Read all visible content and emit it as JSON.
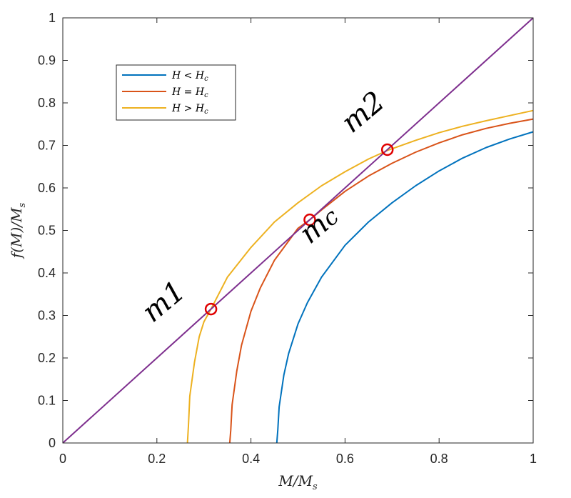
{
  "chart_data": {
    "type": "line",
    "xlabel": "M/M_s",
    "ylabel": "f(M)/M_s",
    "xlim": [
      0,
      1
    ],
    "ylim": [
      0,
      1
    ],
    "xticks": [
      0,
      0.2,
      0.4,
      0.6,
      0.8,
      1
    ],
    "xtick_labels": [
      "0",
      "0.2",
      "0.4",
      "0.6",
      "0.8",
      "1"
    ],
    "yticks": [
      0,
      0.1,
      0.2,
      0.3,
      0.4,
      0.5,
      0.6,
      0.7,
      0.8,
      0.9,
      1
    ],
    "ytick_labels": [
      "0",
      "0.1",
      "0.2",
      "0.3",
      "0.4",
      "0.5",
      "0.6",
      "0.7",
      "0.8",
      "0.9",
      "1"
    ],
    "grid": false,
    "legend_position": "top-left",
    "series": [
      {
        "name": "H < H_c",
        "color": "#0072BD",
        "x": [
          0.455,
          0.457,
          0.46,
          0.47,
          0.48,
          0.5,
          0.52,
          0.55,
          0.6,
          0.65,
          0.7,
          0.75,
          0.8,
          0.85,
          0.9,
          0.95,
          1.0
        ],
        "y": [
          0.0,
          0.03,
          0.085,
          0.16,
          0.21,
          0.28,
          0.33,
          0.39,
          0.465,
          0.52,
          0.565,
          0.605,
          0.64,
          0.67,
          0.695,
          0.715,
          0.732
        ]
      },
      {
        "name": "H = H_c",
        "color": "#D95319",
        "x": [
          0.355,
          0.357,
          0.36,
          0.37,
          0.38,
          0.4,
          0.42,
          0.45,
          0.5,
          0.525,
          0.55,
          0.6,
          0.65,
          0.7,
          0.75,
          0.8,
          0.85,
          0.9,
          0.95,
          1.0
        ],
        "y": [
          0.0,
          0.03,
          0.09,
          0.17,
          0.23,
          0.31,
          0.365,
          0.43,
          0.505,
          0.525,
          0.548,
          0.592,
          0.628,
          0.658,
          0.684,
          0.706,
          0.725,
          0.74,
          0.752,
          0.762
        ]
      },
      {
        "name": "H > H_c",
        "color": "#EDB120",
        "x": [
          0.265,
          0.267,
          0.27,
          0.28,
          0.29,
          0.3,
          0.315,
          0.35,
          0.4,
          0.45,
          0.5,
          0.55,
          0.6,
          0.65,
          0.69,
          0.75,
          0.8,
          0.85,
          0.9,
          0.95,
          1.0
        ],
        "y": [
          0.0,
          0.04,
          0.11,
          0.19,
          0.25,
          0.285,
          0.315,
          0.39,
          0.46,
          0.52,
          0.565,
          0.605,
          0.638,
          0.668,
          0.688,
          0.712,
          0.73,
          0.745,
          0.758,
          0.77,
          0.782
        ]
      },
      {
        "color": "#7E2F8E",
        "x": [
          0,
          1
        ],
        "y": [
          0,
          1
        ]
      }
    ],
    "markers": [
      {
        "label": "m1",
        "x": 0.315,
        "y": 0.315,
        "color": "#E00000"
      },
      {
        "label": "m_c",
        "x": 0.525,
        "y": 0.525,
        "color": "#E00000"
      },
      {
        "label": "m2",
        "x": 0.69,
        "y": 0.69,
        "color": "#E00000"
      }
    ]
  }
}
